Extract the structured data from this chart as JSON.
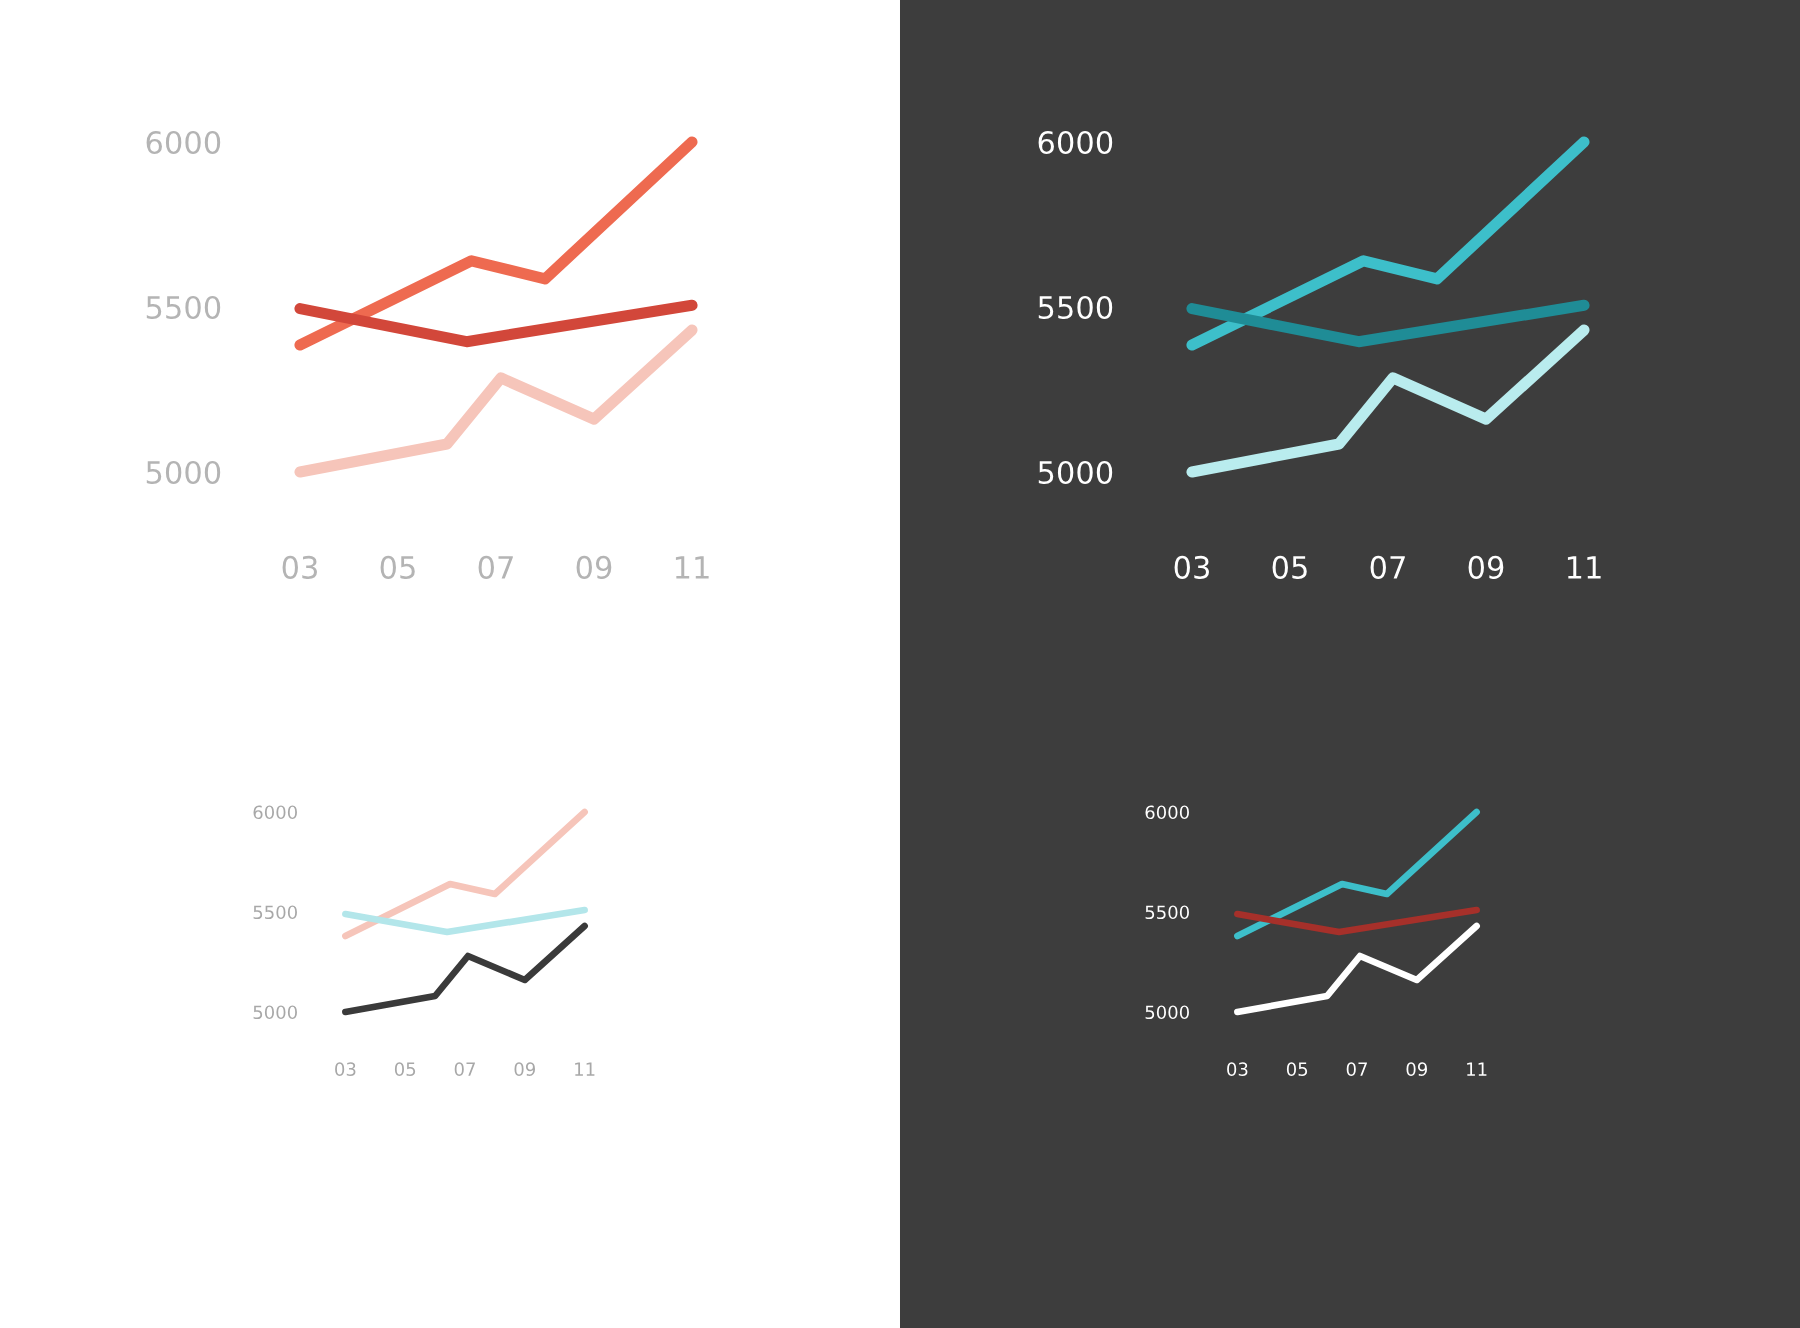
{
  "chart_data": [
    {
      "type": "line",
      "xlim": [
        3,
        11
      ],
      "ylim": [
        5000,
        6000
      ],
      "xticks": [
        {
          "value": 3,
          "label": "03"
        },
        {
          "value": 5,
          "label": "05"
        },
        {
          "value": 7,
          "label": "07"
        },
        {
          "value": 9,
          "label": "09"
        },
        {
          "value": 11,
          "label": "11"
        }
      ],
      "yticks": [
        5000,
        5500,
        6000
      ],
      "grid": false,
      "legend": false,
      "marker": "none",
      "line_style": "solid",
      "series": [
        {
          "color": "#ee6a50",
          "x": [
            3,
            6.5,
            8,
            11
          ],
          "values": [
            5385,
            5640,
            5585,
            6000
          ]
        },
        {
          "color": "#d2473a",
          "x": [
            3,
            6.4,
            11
          ],
          "values": [
            5495,
            5395,
            5505
          ]
        },
        {
          "color": "#f6c5ba",
          "x": [
            3,
            6,
            7.1,
            9,
            11
          ],
          "values": [
            5000,
            5085,
            5285,
            5160,
            5430
          ]
        }
      ]
    },
    {
      "type": "line",
      "xlim": [
        3,
        11
      ],
      "ylim": [
        5000,
        6000
      ],
      "xticks": [
        {
          "value": 3,
          "label": "03"
        },
        {
          "value": 5,
          "label": "05"
        },
        {
          "value": 7,
          "label": "07"
        },
        {
          "value": 9,
          "label": "09"
        },
        {
          "value": 11,
          "label": "11"
        }
      ],
      "yticks": [
        5000,
        5500,
        6000
      ],
      "grid": false,
      "legend": false,
      "marker": "none",
      "line_style": "solid",
      "series": [
        {
          "color": "#3dbfca",
          "x": [
            3,
            6.5,
            8,
            11
          ],
          "values": [
            5385,
            5640,
            5585,
            6000
          ]
        },
        {
          "color": "#1f8c96",
          "x": [
            3,
            6.4,
            11
          ],
          "values": [
            5495,
            5395,
            5505
          ]
        },
        {
          "color": "#b9ecee",
          "x": [
            3,
            6,
            7.1,
            9,
            11
          ],
          "values": [
            5000,
            5085,
            5285,
            5160,
            5430
          ]
        }
      ]
    },
    {
      "type": "line",
      "xlim": [
        3,
        11
      ],
      "ylim": [
        5000,
        6000
      ],
      "xticks": [
        {
          "value": 3,
          "label": "03"
        },
        {
          "value": 5,
          "label": "05"
        },
        {
          "value": 7,
          "label": "07"
        },
        {
          "value": 9,
          "label": "09"
        },
        {
          "value": 11,
          "label": "11"
        }
      ],
      "yticks": [
        5000,
        5500,
        6000
      ],
      "grid": false,
      "legend": false,
      "marker": "none",
      "line_style": "solid",
      "series": [
        {
          "color": "#f6c5ba",
          "x": [
            3,
            6.5,
            8,
            11
          ],
          "values": [
            5380,
            5640,
            5590,
            6000
          ]
        },
        {
          "color": "#b3e6ea",
          "x": [
            3,
            6.4,
            11
          ],
          "values": [
            5490,
            5400,
            5510
          ]
        },
        {
          "color": "#3a3a3a",
          "x": [
            3,
            6,
            7.1,
            9,
            11
          ],
          "values": [
            5000,
            5080,
            5280,
            5160,
            5430
          ]
        }
      ]
    },
    {
      "type": "line",
      "xlim": [
        3,
        11
      ],
      "ylim": [
        5000,
        6000
      ],
      "xticks": [
        {
          "value": 3,
          "label": "03"
        },
        {
          "value": 5,
          "label": "05"
        },
        {
          "value": 7,
          "label": "07"
        },
        {
          "value": 9,
          "label": "09"
        },
        {
          "value": 11,
          "label": "11"
        }
      ],
      "yticks": [
        5000,
        5500,
        6000
      ],
      "grid": false,
      "legend": false,
      "marker": "none",
      "line_style": "solid",
      "series": [
        {
          "color": "#3dbfca",
          "x": [
            3,
            6.5,
            8,
            11
          ],
          "values": [
            5380,
            5640,
            5590,
            6000
          ]
        },
        {
          "color": "#a6302a",
          "x": [
            3,
            6.4,
            11
          ],
          "values": [
            5490,
            5400,
            5510
          ]
        },
        {
          "color": "#ffffff",
          "x": [
            3,
            6,
            7.1,
            9,
            11
          ],
          "values": [
            5000,
            5080,
            5280,
            5160,
            5430
          ]
        }
      ]
    }
  ]
}
